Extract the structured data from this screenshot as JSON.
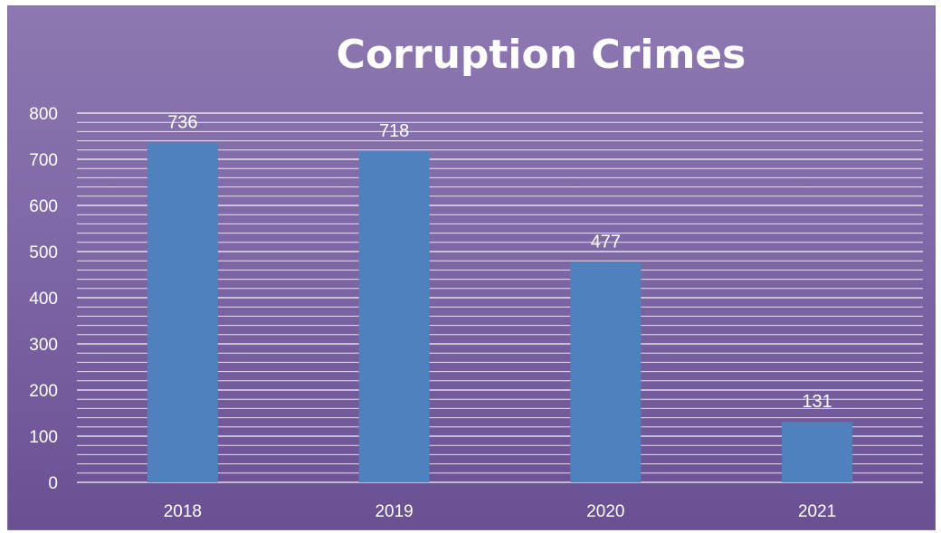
{
  "chart_data": {
    "type": "bar",
    "title": "Corruption Crimes",
    "categories": [
      "2018",
      "2019",
      "2020",
      "2021"
    ],
    "values": [
      736,
      718,
      477,
      131
    ],
    "ylim": [
      0,
      800
    ],
    "yticks": [
      0,
      100,
      200,
      300,
      400,
      500,
      600,
      700,
      800
    ],
    "grid": true,
    "legend": "none",
    "colors": {
      "bar": "#4f81bd",
      "grid": "#ffffff",
      "text": "#ffffff"
    }
  }
}
